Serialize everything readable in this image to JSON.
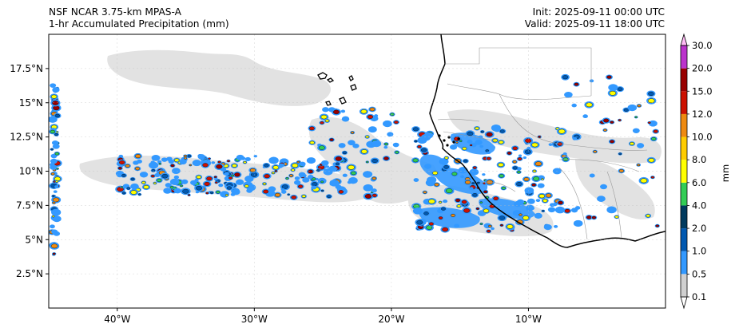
{
  "title": {
    "left_line1": "NSF NCAR 3.75-km MPAS-A",
    "left_line2": "1-hr Accumulated Precipitation (mm)",
    "right_line1": "Init: 2025-09-11 00:00 UTC",
    "right_line2": "Valid: 2025-09-11 18:00 UTC"
  },
  "map": {
    "lon_range": [
      -45,
      0
    ],
    "lat_range": [
      0,
      20
    ],
    "lat_ticks": [
      {
        "value": 17.5,
        "label": "17.5°N"
      },
      {
        "value": 15,
        "label": "15°N"
      },
      {
        "value": 12.5,
        "label": "12.5°N"
      },
      {
        "value": 10,
        "label": "10°N"
      },
      {
        "value": 7.5,
        "label": "7.5°N"
      },
      {
        "value": 5,
        "label": "5°N"
      },
      {
        "value": 2.5,
        "label": "2.5°N"
      }
    ],
    "lon_ticks": [
      {
        "value": -40,
        "label": "40°W"
      },
      {
        "value": -30,
        "label": "30°W"
      },
      {
        "value": -20,
        "label": "20°W"
      },
      {
        "value": -10,
        "label": "10°W"
      }
    ]
  },
  "colorbar": {
    "label": "mm",
    "levels": [
      "0.1",
      "0.5",
      "1.0",
      "2.0",
      "4.0",
      "6.0",
      "8.0",
      "10.0",
      "12.0",
      "15.0",
      "20.0",
      "30.0"
    ],
    "colors": [
      "#ffffff",
      "#d0d0d0",
      "#3399ff",
      "#0058b0",
      "#003a5e",
      "#33cc55",
      "#ffff00",
      "#ffcc00",
      "#ee8a11",
      "#cc1100",
      "#990000",
      "#bb33cc",
      "#ffbbf5"
    ]
  }
}
